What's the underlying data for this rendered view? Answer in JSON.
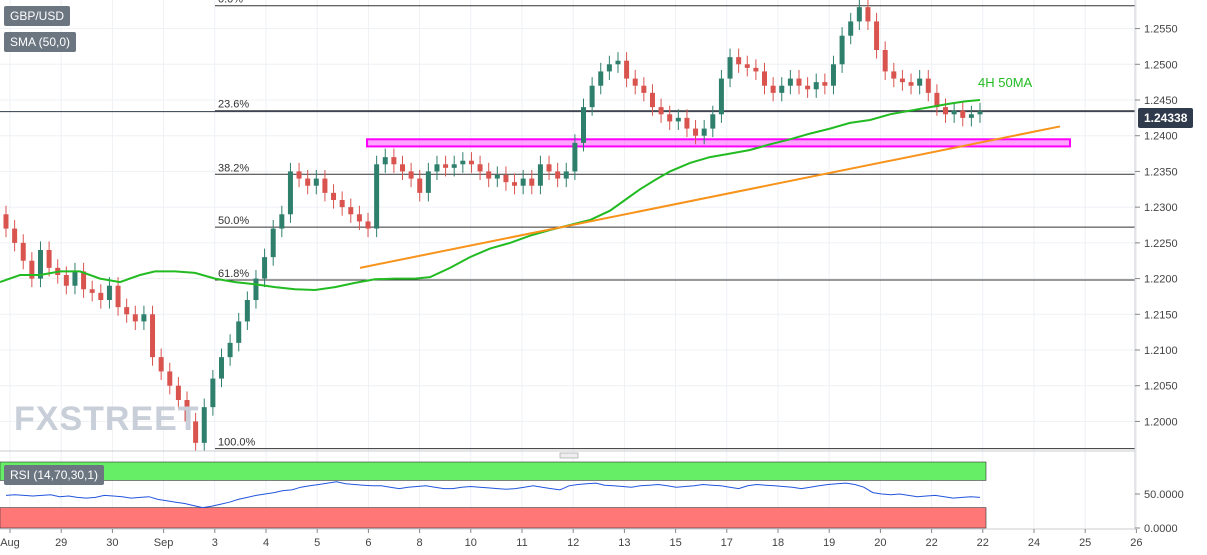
{
  "legend": {
    "symbol": "GBP/USD",
    "sma": "SMA (50,0)",
    "rsi": "RSI (14,70,30,1)"
  },
  "watermark": "FXSTREET",
  "annotations": {
    "ma_label": "4H 50MA",
    "last_price": "1.24338"
  },
  "colors": {
    "bull": "#2f7f6d",
    "bear": "#d9534f",
    "sma": "#22bb22",
    "trendline": "#f7931a",
    "resistance": "#ff00ff",
    "rsi_line": "#2255dd",
    "rsi_overbought": "#66ee66",
    "rsi_oversold": "#ff7777"
  },
  "chart_data": [
    {
      "type": "candlestick",
      "ylim": [
        1.196,
        1.259
      ],
      "yticks": [
        "1.2550",
        "1.2500",
        "1.2450",
        "1.2400",
        "1.2350",
        "1.2300",
        "1.2250",
        "1.2200",
        "1.2150",
        "1.2100",
        "1.2050",
        "1.2000"
      ],
      "xticks": [
        "Aug",
        "29",
        "30",
        "Sep",
        "3",
        "4",
        "5",
        "6",
        "8",
        "10",
        "11",
        "12",
        "13",
        "15",
        "17",
        "18",
        "19",
        "20",
        "22",
        "22",
        "24",
        "25",
        "26"
      ],
      "fibonacci": [
        {
          "label": "0.0%",
          "value": 1.2582
        },
        {
          "label": "23.6%",
          "value": 1.2435
        },
        {
          "label": "38.2%",
          "value": 1.2346
        },
        {
          "label": "50.0%",
          "value": 1.2272
        },
        {
          "label": "61.8%",
          "value": 1.2198
        },
        {
          "label": "100.0%",
          "value": 1.1962
        }
      ],
      "resistance_zone": [
        1.2385,
        1.2395
      ],
      "close_points": [
        1.227,
        1.225,
        1.2225,
        1.22,
        1.224,
        1.2215,
        1.2205,
        1.219,
        1.221,
        1.2185,
        1.218,
        1.217,
        1.219,
        1.216,
        1.215,
        1.214,
        1.215,
        1.209,
        1.207,
        1.205,
        1.203,
        1.2,
        1.197,
        1.202,
        1.206,
        1.209,
        1.211,
        1.214,
        1.217,
        1.22,
        1.223,
        1.227,
        1.229,
        1.235,
        1.234,
        1.233,
        1.234,
        1.232,
        1.231,
        1.23,
        1.229,
        1.228,
        1.227,
        1.236,
        1.237,
        1.236,
        1.235,
        1.234,
        1.232,
        1.235,
        1.236,
        1.2355,
        1.236,
        1.2365,
        1.236,
        1.235,
        1.234,
        1.2345,
        1.2335,
        1.233,
        1.234,
        1.233,
        1.236,
        1.235,
        1.234,
        1.235,
        1.239,
        1.244,
        1.247,
        1.249,
        1.25,
        1.2505,
        1.248,
        1.247,
        1.246,
        1.244,
        1.243,
        1.242,
        1.2425,
        1.241,
        1.24,
        1.241,
        1.243,
        1.248,
        1.251,
        1.25,
        1.2495,
        1.249,
        1.247,
        1.246,
        1.247,
        1.248,
        1.247,
        1.2465,
        1.2475,
        1.247,
        1.25,
        1.254,
        1.256,
        1.258,
        1.256,
        1.252,
        1.249,
        1.248,
        1.2475,
        1.247,
        1.248,
        1.246,
        1.244,
        1.243,
        1.2435,
        1.2425,
        1.243,
        1.2434
      ],
      "sma_points": [
        [
          0,
          1.2195
        ],
        [
          20,
          1.2205
        ],
        [
          40,
          1.2205
        ],
        [
          60,
          1.221
        ],
        [
          80,
          1.221
        ],
        [
          100,
          1.22
        ],
        [
          120,
          1.2195
        ],
        [
          140,
          1.2205
        ],
        [
          155,
          1.221
        ],
        [
          175,
          1.221
        ],
        [
          195,
          1.2208
        ],
        [
          215,
          1.22
        ],
        [
          235,
          1.2195
        ],
        [
          255,
          1.2192
        ],
        [
          275,
          1.2188
        ],
        [
          295,
          1.2185
        ],
        [
          315,
          1.2184
        ],
        [
          335,
          1.2188
        ],
        [
          355,
          1.2194
        ],
        [
          375,
          1.2199
        ],
        [
          395,
          1.22
        ],
        [
          415,
          1.22
        ],
        [
          430,
          1.2202
        ],
        [
          450,
          1.2215
        ],
        [
          470,
          1.223
        ],
        [
          490,
          1.2242
        ],
        [
          510,
          1.225
        ],
        [
          530,
          1.226
        ],
        [
          550,
          1.2268
        ],
        [
          570,
          1.2275
        ],
        [
          590,
          1.2282
        ],
        [
          610,
          1.2295
        ],
        [
          625,
          1.231
        ],
        [
          640,
          1.2325
        ],
        [
          655,
          1.2338
        ],
        [
          670,
          1.235
        ],
        [
          690,
          1.2362
        ],
        [
          710,
          1.237
        ],
        [
          730,
          1.2375
        ],
        [
          750,
          1.238
        ],
        [
          770,
          1.2388
        ],
        [
          790,
          1.2395
        ],
        [
          810,
          1.2403
        ],
        [
          830,
          1.241
        ],
        [
          850,
          1.2418
        ],
        [
          870,
          1.2422
        ],
        [
          890,
          1.243
        ],
        [
          910,
          1.2435
        ],
        [
          930,
          1.244
        ],
        [
          950,
          1.2445
        ],
        [
          965,
          1.2448
        ],
        [
          980,
          1.245
        ]
      ],
      "trendline": [
        [
          360,
          1.2215
        ],
        [
          1060,
          1.2413
        ]
      ]
    },
    {
      "type": "line",
      "name": "RSI",
      "ylim": [
        0,
        100
      ],
      "yticks": [
        "50.0000",
        "0.0000"
      ],
      "levels": [
        70,
        30
      ],
      "values": [
        48,
        49,
        48,
        47,
        48,
        49,
        46,
        47,
        45,
        44,
        45,
        48,
        47,
        46,
        44,
        45,
        46,
        42,
        40,
        38,
        36,
        33,
        30,
        32,
        35,
        38,
        42,
        45,
        48,
        50,
        52,
        55,
        56,
        60,
        62,
        64,
        66,
        68,
        65,
        64,
        63,
        62,
        62,
        60,
        58,
        60,
        61,
        62,
        60,
        58,
        58,
        60,
        61,
        60,
        59,
        58,
        57,
        58,
        60,
        62,
        60,
        58,
        56,
        62,
        64,
        65,
        66,
        63,
        62,
        61,
        60,
        62,
        63,
        64,
        62,
        60,
        61,
        62,
        64,
        63,
        62,
        60,
        58,
        62,
        64,
        63,
        62,
        61,
        60,
        58,
        60,
        62,
        64,
        65,
        66,
        64,
        60,
        52,
        50,
        49,
        50,
        48,
        46,
        47,
        48,
        46,
        44,
        45,
        46,
        45
      ]
    }
  ]
}
